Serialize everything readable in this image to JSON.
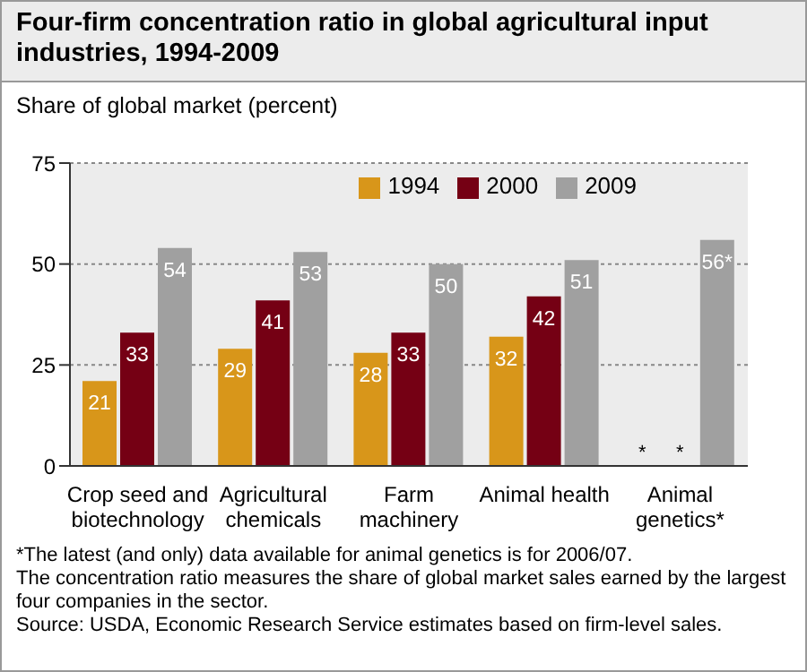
{
  "chart_data": {
    "type": "bar",
    "title": "Four-firm concentration ratio in global agricultural input industries, 1994-2009",
    "ylabel": "Share of global market (percent)",
    "categories": [
      "Crop seed and biotechnology",
      "Agricultural chemicals",
      "Farm machinery",
      "Animal health",
      "Animal genetics*"
    ],
    "series": [
      {
        "name": "1994",
        "color": "#d8961a",
        "values": [
          21,
          29,
          28,
          32,
          null
        ],
        "value_labels": [
          "21",
          "29",
          "28",
          "32",
          "*"
        ]
      },
      {
        "name": "2000",
        "color": "#750014",
        "values": [
          33,
          41,
          33,
          42,
          null
        ],
        "value_labels": [
          "33",
          "41",
          "33",
          "42",
          "*"
        ]
      },
      {
        "name": "2009",
        "color": "#a0a0a0",
        "values": [
          54,
          53,
          50,
          51,
          56
        ],
        "value_labels": [
          "54",
          "53",
          "50",
          "51",
          "56*"
        ]
      }
    ],
    "ylim": [
      0,
      75
    ],
    "yticks": [
      0,
      25,
      50,
      75
    ],
    "grid": "y",
    "legend": "top right",
    "annotations": [
      "*The latest (and only) data available for animal genetics is for 2006/07.",
      "The concentration ratio measures the share of global market sales earned by the largest four companies in the sector.",
      "Source: USDA, Economic Research Service estimates based on firm-level sales."
    ]
  }
}
